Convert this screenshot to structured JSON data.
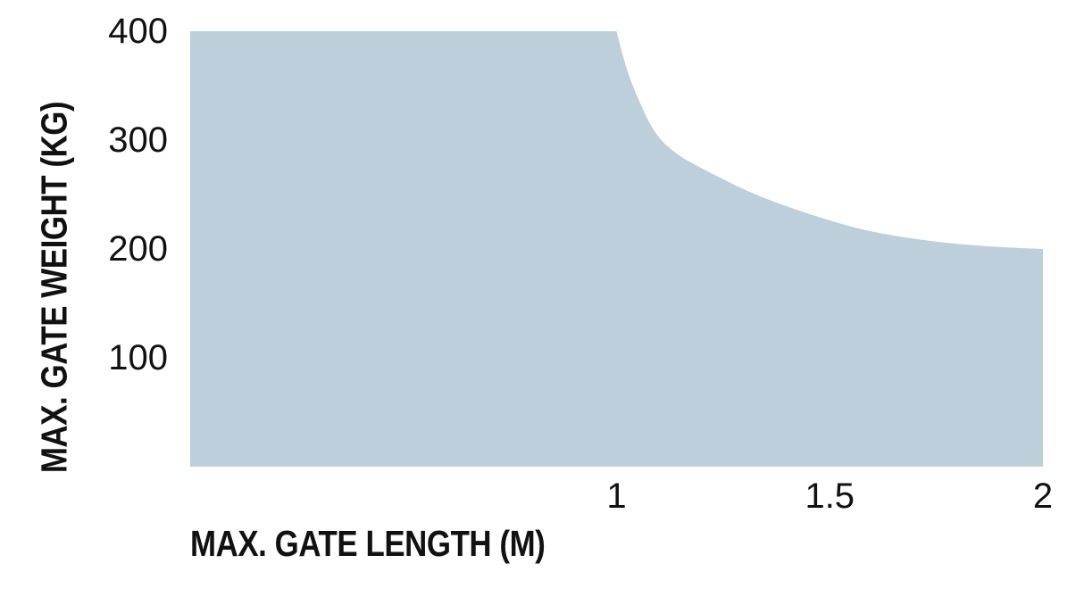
{
  "page": {
    "background": "#FFFFFF"
  },
  "chart_data": {
    "type": "area",
    "title": "",
    "xlabel": "MAX. GATE LENGTH (M)",
    "ylabel": "MAX. GATE WEIGHT (KG)",
    "xlim": [
      0,
      2
    ],
    "ylim": [
      0,
      400
    ],
    "x_ticks": [
      {
        "value": 1,
        "label": "1"
      },
      {
        "value": 1.5,
        "label": "1.5"
      },
      {
        "value": 2,
        "label": "2"
      }
    ],
    "y_ticks": [
      {
        "value": 400,
        "label": "400"
      },
      {
        "value": 300,
        "label": "300"
      },
      {
        "value": 200,
        "label": "200"
      },
      {
        "value": 100,
        "label": "100"
      }
    ],
    "grid": false,
    "legend": null,
    "axis_lines": false,
    "area_color": "#BCCFDA",
    "text_color": "#111111",
    "boundary": [
      [
        0,
        400
      ],
      [
        1.0,
        400
      ],
      [
        1.02,
        368
      ],
      [
        1.05,
        338
      ],
      [
        1.09,
        305
      ],
      [
        1.14,
        287
      ],
      [
        1.19,
        276
      ],
      [
        1.31,
        252
      ],
      [
        1.42,
        236
      ],
      [
        1.55,
        220
      ],
      [
        1.65,
        212
      ],
      [
        1.76,
        206
      ],
      [
        1.88,
        202
      ],
      [
        2.0,
        200
      ]
    ]
  }
}
